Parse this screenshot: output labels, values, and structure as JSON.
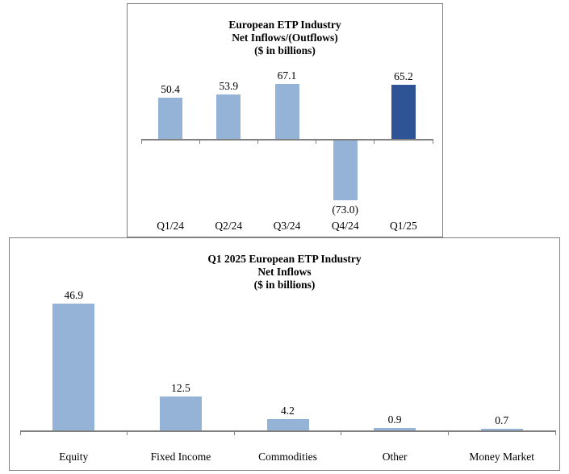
{
  "chart_data": [
    {
      "type": "bar",
      "title": "European ETP Industry Net Inflows/(Outflows) ($ in billions)",
      "title_lines": [
        "European ETP Industry",
        "Net Inflows/(Outflows)",
        "($ in billions)"
      ],
      "categories": [
        "Q1/24",
        "Q2/24",
        "Q3/24",
        "Q4/24",
        "Q1/25"
      ],
      "values": [
        50.4,
        53.9,
        67.1,
        -73.0,
        65.2
      ],
      "value_labels": [
        "50.4",
        "53.9",
        "67.1",
        "(73.0)",
        "65.2"
      ],
      "bar_colors": [
        "#95B3D7",
        "#95B3D7",
        "#95B3D7",
        "#95B3D7",
        "#2F5496"
      ],
      "xlabel": "",
      "ylabel": "",
      "ylim": [
        -80,
        75
      ],
      "legend": false,
      "gridlines": false
    },
    {
      "type": "bar",
      "title": "Q1 2025 European ETP Industry Net Inflows ($ in billions)",
      "title_lines": [
        "Q1 2025 European ETP Industry",
        "Net Inflows",
        "($ in billions)"
      ],
      "categories": [
        "Equity",
        "Fixed Income",
        "Commodities",
        "Other",
        "Money Market"
      ],
      "values": [
        46.9,
        12.5,
        4.2,
        0.9,
        0.7
      ],
      "value_labels": [
        "46.9",
        "12.5",
        "4.2",
        "0.9",
        "0.7"
      ],
      "bar_colors": [
        "#95B3D7",
        "#95B3D7",
        "#95B3D7",
        "#95B3D7",
        "#95B3D7"
      ],
      "xlabel": "",
      "ylabel": "",
      "ylim": [
        0,
        52
      ],
      "legend": false,
      "gridlines": false
    }
  ],
  "colors": {
    "bar_light_blue": "#95B3D7",
    "bar_dark_blue": "#2F5496",
    "axis_gray": "#808080",
    "border_gray": "#808080",
    "text_black": "#000000",
    "background": "#FFFFFF"
  }
}
